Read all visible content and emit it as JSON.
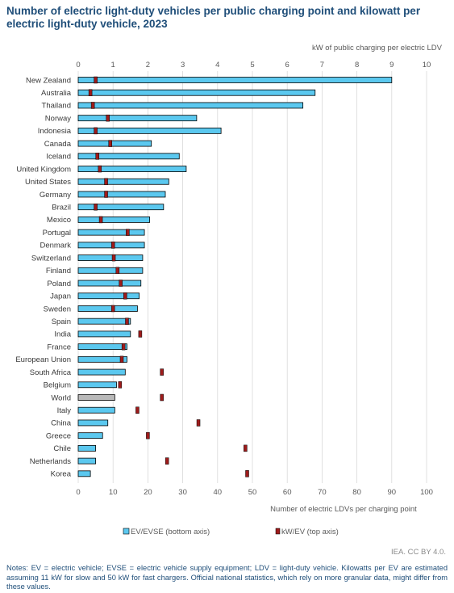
{
  "title": "Number of electric light-duty vehicles per public charging point and kilowatt per electric light-duty vehicle, 2023",
  "credit": "IEA. CC BY 4.0.",
  "notes": "Notes: EV = electric vehicle; EVSE = electric vehicle supply equipment; LDV = light-duty vehicle. Kilowatts per EV are estimated assuming 11 kW for slow and 50 kW for fast chargers. Official national statistics, which rely on more granular data, might differ from these values.",
  "colors": {
    "bar": "#5bc8ef",
    "bar_world": "#b9b9b9",
    "marker": "#9e1b1b",
    "axis_text": "#595959",
    "grid": "#d9d9d9"
  },
  "chart_data": {
    "type": "bar",
    "orientation": "horizontal",
    "categories": [
      "New Zealand",
      "Australia",
      "Thailand",
      "Norway",
      "Indonesia",
      "Canada",
      "Iceland",
      "United Kingdom",
      "United States",
      "Germany",
      "Brazil",
      "Mexico",
      "Portugal",
      "Denmark",
      "Switzerland",
      "Finland",
      "Poland",
      "Japan",
      "Sweden",
      "Spain",
      "India",
      "France",
      "European Union",
      "South Africa",
      "Belgium",
      "World",
      "Italy",
      "China",
      "Greece",
      "Chile",
      "Netherlands",
      "Korea"
    ],
    "series": [
      {
        "name": "EV/EVSE (bottom axis)",
        "axis": "bottom",
        "values": [
          90,
          68,
          64.5,
          34,
          41,
          21,
          29,
          31,
          26,
          25,
          24.5,
          20.5,
          19,
          19,
          18.5,
          18.5,
          18,
          17.5,
          17,
          15,
          15,
          14,
          14,
          13.5,
          11,
          10.5,
          10.5,
          8.5,
          7,
          5,
          5,
          3.5
        ]
      },
      {
        "name": "kW/EV (top axis)",
        "axis": "top",
        "values": [
          0.5,
          0.35,
          0.42,
          0.85,
          0.5,
          0.92,
          0.55,
          0.62,
          0.8,
          0.8,
          0.5,
          0.65,
          1.42,
          1.0,
          1.02,
          1.13,
          1.22,
          1.35,
          1.0,
          1.4,
          1.78,
          1.3,
          1.25,
          2.4,
          1.2,
          2.4,
          1.7,
          3.45,
          2.0,
          4.8,
          2.55,
          4.85
        ]
      }
    ],
    "xlim_bottom": [
      0,
      100
    ],
    "xticks_bottom": [
      "0",
      "10",
      "20",
      "30",
      "40",
      "50",
      "60",
      "70",
      "80",
      "90",
      "100"
    ],
    "xlim_top": [
      0,
      10
    ],
    "xticks_top": [
      "0",
      "1",
      "2",
      "3",
      "4",
      "5",
      "6",
      "7",
      "8",
      "9",
      "10"
    ],
    "xlabel_bottom": "Number of electric LDVs per charging point",
    "xlabel_top": "kW of public charging per electric LDV",
    "highlight_category": "World",
    "grid": true,
    "legend": "bottom"
  }
}
